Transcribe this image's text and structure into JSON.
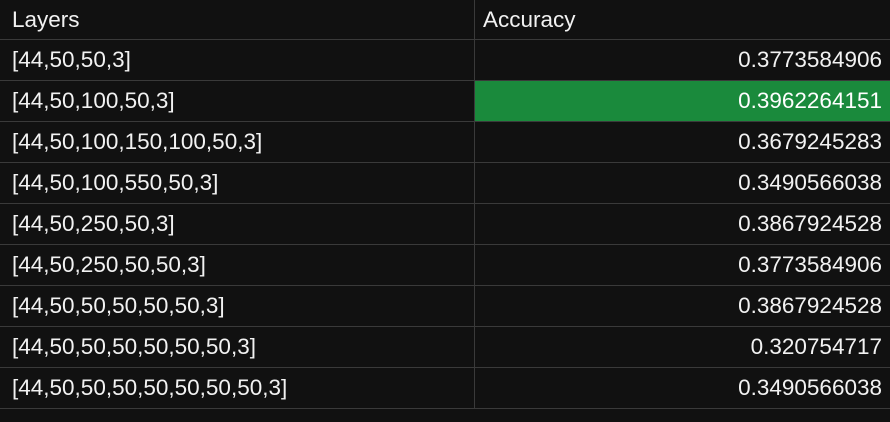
{
  "table": {
    "headers": {
      "layers": "Layers",
      "accuracy": "Accuracy"
    },
    "highlight_color": "#1a8a3c",
    "rows": [
      {
        "layers": "[44,50,50,3]",
        "accuracy": "0.3773584906",
        "highlighted": false
      },
      {
        "layers": "[44,50,100,50,3]",
        "accuracy": "0.3962264151",
        "highlighted": true
      },
      {
        "layers": "[44,50,100,150,100,50,3]",
        "accuracy": "0.3679245283",
        "highlighted": false
      },
      {
        "layers": "[44,50,100,550,50,3]",
        "accuracy": "0.3490566038",
        "highlighted": false
      },
      {
        "layers": "[44,50,250,50,3]",
        "accuracy": "0.3867924528",
        "highlighted": false
      },
      {
        "layers": "[44,50,250,50,50,3]",
        "accuracy": "0.3773584906",
        "highlighted": false
      },
      {
        "layers": "[44,50,50,50,50,50,3]",
        "accuracy": "0.3867924528",
        "highlighted": false
      },
      {
        "layers": "[44,50,50,50,50,50,50,3]",
        "accuracy": "0.320754717",
        "highlighted": false
      },
      {
        "layers": "[44,50,50,50,50,50,50,50,3]",
        "accuracy": "0.3490566038",
        "highlighted": false
      }
    ]
  }
}
